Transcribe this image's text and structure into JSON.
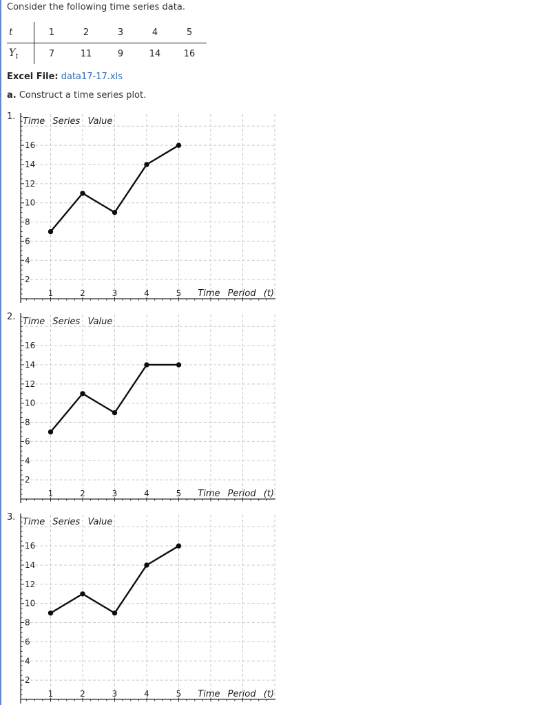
{
  "page": {
    "intro": "Consider the following time series data.",
    "excel_label": "Excel File:",
    "excel_link": "data17-17.xls",
    "part_a_label": "a.",
    "part_a_text": "Construct a time series plot."
  },
  "data_table": {
    "t_header": "t",
    "t_values": [
      "1",
      "2",
      "3",
      "4",
      "5"
    ],
    "y_header_main": "Y",
    "y_header_sub": "t",
    "y_values": [
      "7",
      "11",
      "9",
      "14",
      "16"
    ]
  },
  "chart_data": [
    {
      "option_number": "1.",
      "type": "line",
      "title": "Time Series Value",
      "xlabel": "Time Period (t)",
      "x": [
        1,
        2,
        3,
        4,
        5
      ],
      "y": [
        7,
        11,
        9,
        14,
        16
      ],
      "xticks": [
        1,
        2,
        3,
        4,
        5
      ],
      "yticks": [
        2,
        4,
        6,
        8,
        10,
        12,
        14,
        16
      ],
      "xlim": [
        0,
        8
      ],
      "ylim": [
        0,
        19.5
      ],
      "grid": true,
      "legend": "none"
    },
    {
      "option_number": "2.",
      "type": "line",
      "title": "Time Series Value",
      "xlabel": "Time Period (t)",
      "x": [
        1,
        2,
        3,
        4,
        5
      ],
      "y": [
        7,
        11,
        9,
        14,
        14
      ],
      "xticks": [
        1,
        2,
        3,
        4,
        5
      ],
      "yticks": [
        2,
        4,
        6,
        8,
        10,
        12,
        14,
        16
      ],
      "xlim": [
        0,
        8
      ],
      "ylim": [
        0,
        19.5
      ],
      "grid": true,
      "legend": "none"
    },
    {
      "option_number": "3.",
      "type": "line",
      "title": "Time Series Value",
      "xlabel": "Time Period (t)",
      "x": [
        1,
        2,
        3,
        4,
        5
      ],
      "y": [
        9,
        11,
        9,
        14,
        16
      ],
      "xticks": [
        1,
        2,
        3,
        4,
        5
      ],
      "yticks": [
        2,
        4,
        6,
        8,
        10,
        12,
        14,
        16
      ],
      "xlim": [
        0,
        8
      ],
      "ylim": [
        0,
        19.5
      ],
      "grid": true,
      "legend": "none"
    }
  ],
  "styles": {
    "border_accent": "#6688cc",
    "link_color": "#2a6db5",
    "grid_color": "#c9c9c9",
    "series_color": "#0d0d0d",
    "text_color": "#333333"
  }
}
